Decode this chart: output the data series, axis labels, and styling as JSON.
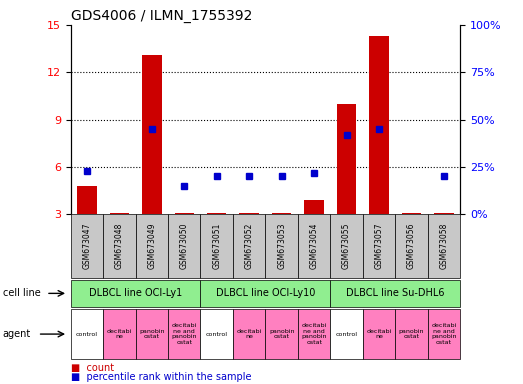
{
  "title": "GDS4006 / ILMN_1755392",
  "samples": [
    "GSM673047",
    "GSM673048",
    "GSM673049",
    "GSM673050",
    "GSM673051",
    "GSM673052",
    "GSM673053",
    "GSM673054",
    "GSM673055",
    "GSM673057",
    "GSM673056",
    "GSM673058"
  ],
  "counts": [
    4.8,
    3.05,
    13.1,
    3.1,
    3.05,
    3.1,
    3.1,
    3.9,
    10.0,
    14.3,
    3.05,
    3.1
  ],
  "percentiles": [
    23,
    null,
    45,
    15,
    20,
    20,
    20,
    22,
    42,
    45,
    null,
    20
  ],
  "ylim_left": [
    3,
    15
  ],
  "ylim_right": [
    0,
    100
  ],
  "yticks_left": [
    3,
    6,
    9,
    12,
    15
  ],
  "yticks_right": [
    0,
    25,
    50,
    75,
    100
  ],
  "cell_line_groups": [
    {
      "label": "DLBCL line OCI-Ly1",
      "start": 0,
      "end": 3,
      "color": "#90EE90"
    },
    {
      "label": "DLBCL line OCI-Ly10",
      "start": 4,
      "end": 7,
      "color": "#90EE90"
    },
    {
      "label": "DLBCL line Su-DHL6",
      "start": 8,
      "end": 11,
      "color": "#90EE90"
    }
  ],
  "agents": [
    "control",
    "decitabi\nne",
    "panobin\nostat",
    "decitabi\nne and\npanobin\nostat",
    "control",
    "decitabi\nne",
    "panobin\nostat",
    "decitabi\nne and\npanobin\nostat",
    "control",
    "decitabi\nne",
    "panobin\nostat",
    "decitabi\nne and\npanobin\nostat"
  ],
  "agent_colors": [
    "#FFFFFF",
    "#FF80C0",
    "#FF80C0",
    "#FF80C0",
    "#FFFFFF",
    "#FF80C0",
    "#FF80C0",
    "#FF80C0",
    "#FFFFFF",
    "#FF80C0",
    "#FF80C0",
    "#FF80C0"
  ],
  "bar_color": "#CC0000",
  "dot_color": "#0000CC",
  "bg_color": "#FFFFFF",
  "cell_line_color": "#90EE90",
  "sample_bg": "#C8C8C8",
  "legend_bar_color": "#CC0000",
  "legend_dot_color": "#0000CC"
}
